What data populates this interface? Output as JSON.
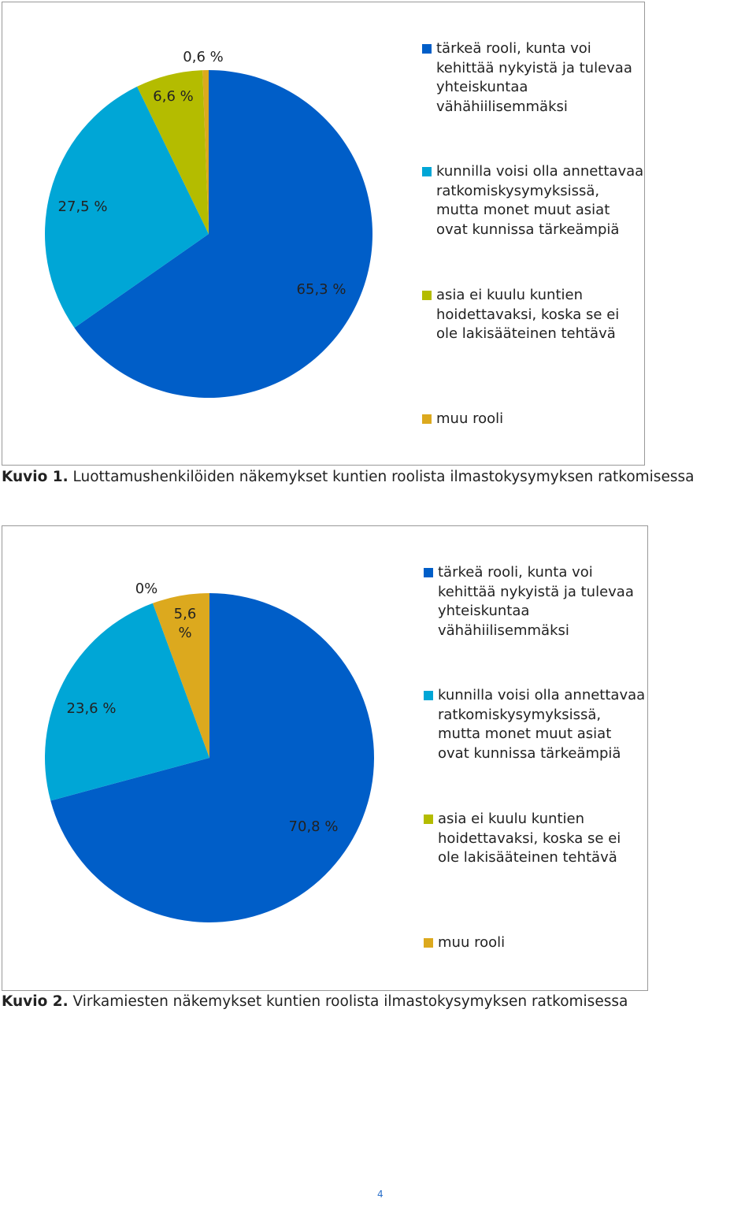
{
  "chart_data": [
    {
      "type": "pie",
      "categories": [
        "tärkeä rooli, kunta voi kehittää nykyistä ja tulevaa yhteiskuntaa vähähiilisemmäksi",
        "kunnilla voisi olla annettavaa ratkomiskysymyksissä, mutta monet muut asiat ovat kunnissa tärkeämpiä",
        "asia ei kuulu kuntien hoidettavaksi, koska se ei ole lakisääteinen tehtävä",
        "muu rooli"
      ],
      "values": [
        65.3,
        27.5,
        6.6,
        0.6
      ],
      "value_labels": [
        "65,3 %",
        "27,5 %",
        "6,6 %",
        "0,6 %"
      ],
      "colors": [
        "#005ec8",
        "#00a6d6",
        "#b4bc00",
        "#dca91e"
      ]
    },
    {
      "type": "pie",
      "categories": [
        "tärkeä rooli, kunta voi kehittää nykyistä ja tulevaa yhteiskuntaa vähähiilisemmäksi",
        "kunnilla voisi olla annettavaa ratkomiskysymyksissä, mutta monet muut asiat ovat kunnissa tärkeämpiä",
        "asia ei kuulu kuntien hoidettavaksi, koska se ei ole lakisääteinen tehtävä",
        "muu rooli"
      ],
      "values": [
        70.8,
        23.6,
        0,
        5.6
      ],
      "value_labels": [
        "70,8 %",
        "23,6 %",
        "0%",
        "5,6 %"
      ],
      "colors": [
        "#005ec8",
        "#00a6d6",
        "#b4bc00",
        "#dca91e"
      ]
    }
  ],
  "captions": [
    {
      "label": "Kuvio 1.",
      "text": "Luottamushenkilöiden näkemykset kuntien roolista ilmastokysymyksen ratkomisessa"
    },
    {
      "label": "Kuvio 2.",
      "text": "Virkamiesten näkemykset kuntien roolista ilmastokysymyksen ratkomisessa"
    }
  ],
  "page_number": "4"
}
